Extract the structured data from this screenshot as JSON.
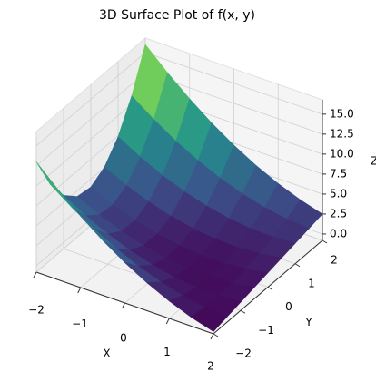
{
  "chart_data": {
    "type": "surface",
    "title": "3D Surface Plot of f(x, y)",
    "x_label": "X",
    "y_label": "Y",
    "z_label": "Z",
    "x": [
      -2,
      -1.5,
      -1,
      -0.5,
      0,
      0.5,
      1,
      1.5,
      2
    ],
    "y": [
      -2,
      -1.5,
      -1,
      -0.5,
      0,
      0.5,
      1,
      1.5,
      2
    ],
    "z": [
      [
        13.0,
        10.44,
        8.13,
        6.06,
        4.25,
        2.69,
        1.38,
        0.31,
        -0.5
      ],
      [
        8.78,
        6.79,
        5.05,
        3.57,
        2.33,
        1.34,
        0.6,
        0.11,
        -0.13
      ],
      [
        5.88,
        4.3,
        2.97,
        1.89,
        1.06,
        0.48,
        0.16,
        0.08,
        0.25
      ],
      [
        4.28,
        2.95,
        1.87,
        1.04,
        0.45,
        0.12,
        0.04,
        0.21,
        0.63
      ],
      [
        4.0,
        2.75,
        1.75,
        1.0,
        0.5,
        0.25,
        0.25,
        0.5,
        1.0
      ],
      [
        5.03,
        3.7,
        2.62,
        1.79,
        1.2,
        0.87,
        0.79,
        0.96,
        1.38
      ],
      [
        7.38,
        5.8,
        4.47,
        3.39,
        2.56,
        1.98,
        1.66,
        1.58,
        1.75
      ],
      [
        11.03,
        9.04,
        7.3,
        5.82,
        4.58,
        3.59,
        2.85,
        2.36,
        2.13
      ],
      [
        16.0,
        13.44,
        11.13,
        9.06,
        7.25,
        5.69,
        4.38,
        3.31,
        2.5
      ]
    ],
    "colormap": "viridis",
    "xlim": [
      -2,
      2
    ],
    "ylim": [
      -2,
      2
    ],
    "zlim": [
      -0.8,
      16.8
    ],
    "xticks": [
      {
        "value": -2,
        "label": "−2"
      },
      {
        "value": -1,
        "label": "−1"
      },
      0,
      1,
      2
    ],
    "yticks": [
      {
        "value": -2,
        "label": "−2"
      },
      {
        "value": -1,
        "label": "−1"
      },
      0,
      1,
      2
    ],
    "zticks": [
      {
        "value": 0,
        "label": "0.0"
      },
      {
        "value": 2.5,
        "label": "2.5"
      },
      {
        "value": 5,
        "label": "5.0"
      },
      {
        "value": 7.5,
        "label": "7.5"
      },
      {
        "value": 10,
        "label": "10.0"
      },
      {
        "value": 12.5,
        "label": "12.5"
      },
      {
        "value": 15,
        "label": "15.0"
      }
    ],
    "grid": true
  }
}
